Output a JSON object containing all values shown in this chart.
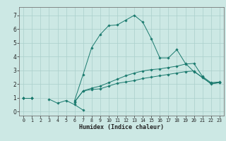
{
  "xlabel": "Humidex (Indice chaleur)",
  "background_color": "#cce8e4",
  "grid_color": "#aacfcb",
  "line_color": "#1a7a6e",
  "xlim": [
    -0.5,
    23.5
  ],
  "ylim": [
    -0.3,
    7.6
  ],
  "xticks": [
    0,
    1,
    2,
    3,
    4,
    5,
    6,
    7,
    8,
    9,
    10,
    11,
    12,
    13,
    14,
    15,
    16,
    17,
    18,
    19,
    20,
    21,
    22,
    23
  ],
  "yticks": [
    0,
    1,
    2,
    3,
    4,
    5,
    6,
    7
  ],
  "series": [
    {
      "y": [
        1.0,
        1.0,
        null,
        0.9,
        0.6,
        0.8,
        0.5,
        0.1,
        null,
        null,
        null,
        null,
        null,
        null,
        null,
        null,
        null,
        null,
        null,
        null,
        null,
        null,
        null,
        null
      ]
    },
    {
      "y": [
        1.0,
        1.0,
        null,
        null,
        null,
        null,
        0.7,
        1.5,
        1.6,
        1.65,
        1.85,
        2.05,
        2.15,
        2.25,
        2.4,
        2.5,
        2.6,
        2.7,
        2.8,
        2.9,
        2.95,
        2.45,
        2.05,
        2.1
      ]
    },
    {
      "y": [
        1.0,
        1.0,
        null,
        null,
        null,
        null,
        0.7,
        1.5,
        1.7,
        1.85,
        2.1,
        2.35,
        2.6,
        2.8,
        2.95,
        3.05,
        3.1,
        3.2,
        3.3,
        3.45,
        3.5,
        2.55,
        2.1,
        2.15
      ]
    },
    {
      "y": [
        1.0,
        1.0,
        null,
        null,
        null,
        null,
        0.8,
        2.7,
        4.65,
        5.6,
        6.25,
        6.3,
        6.65,
        7.0,
        6.5,
        5.3,
        3.9,
        3.9,
        4.5,
        3.5,
        2.9,
        2.5,
        2.0,
        2.1
      ]
    }
  ]
}
